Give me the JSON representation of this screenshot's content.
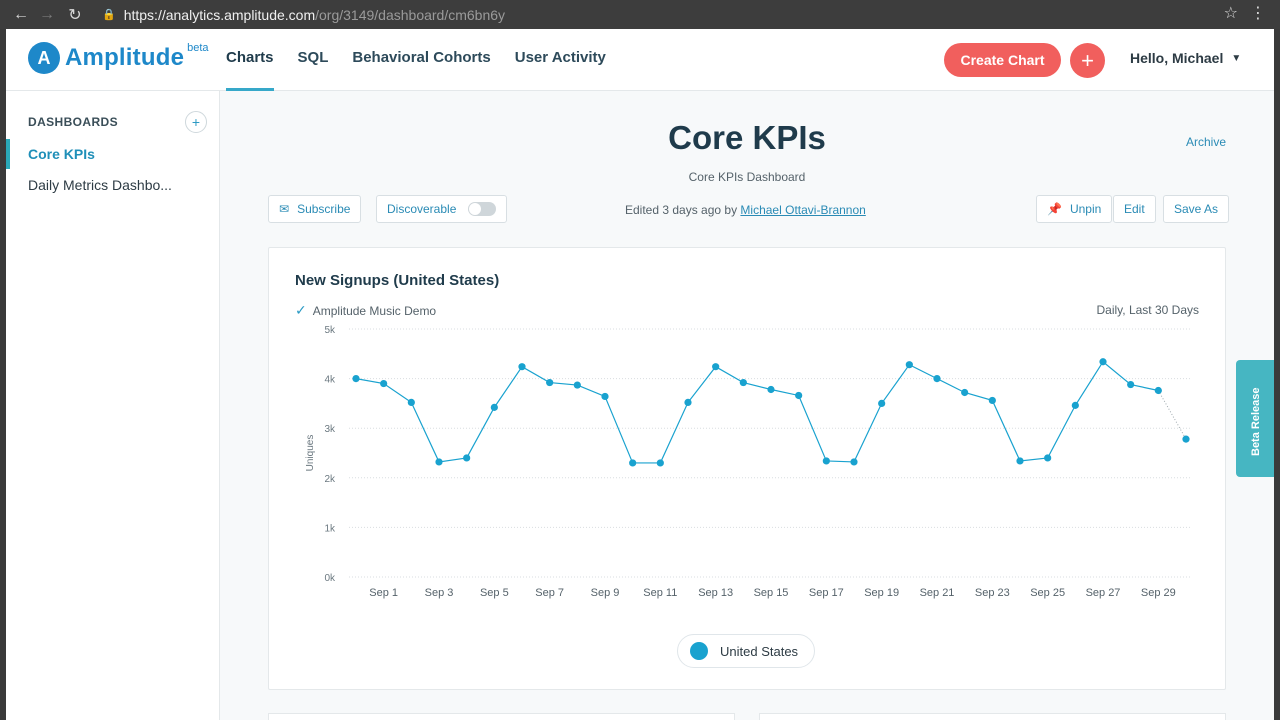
{
  "browser": {
    "url_domain": "https://analytics.amplitude.com",
    "url_path": "/org/3149/dashboard/cm6bn6y",
    "back_icon": "arrow-left",
    "forward_icon": "arrow-right",
    "reload_icon": "reload",
    "lock_icon": "lock",
    "star_icon": "star",
    "menu_icon": "kebab"
  },
  "header": {
    "logo_text": "Amplitude",
    "logo_beta": "beta",
    "nav": [
      "Charts",
      "SQL",
      "Behavioral Cohorts",
      "User Activity"
    ],
    "create_chart": "Create Chart",
    "plus": "+",
    "greeting": "Hello, Michael"
  },
  "sidebar": {
    "heading": "DASHBOARDS",
    "add": "+",
    "items": [
      "Core KPIs",
      "Daily Metrics Dashbo..."
    ]
  },
  "dashboard": {
    "title": "Core KPIs",
    "subtitle": "Core KPIs Dashboard",
    "archive": "Archive",
    "subscribe": "Subscribe",
    "discoverable": "Discoverable",
    "edited_prefix": "Edited 3 days ago by",
    "edited_by": "Michael Ottavi-Brannon",
    "unpin": "Unpin",
    "edit": "Edit",
    "save_as": "Save As"
  },
  "chart_card": {
    "title": "New Signups (United States)",
    "project": "Amplitude Music Demo",
    "range": "Daily, Last 30 Days",
    "legend": "United States"
  },
  "beta_tab": "Beta Release",
  "colors": {
    "accent": "#19a2cf",
    "brand": "#1e88c9",
    "create": "#f15f5d",
    "beta_tab": "#46b6c2"
  },
  "chart_data": {
    "type": "line",
    "title": "New Signups (United States)",
    "ylabel": "Uniques",
    "xlabel": "",
    "ylim": [
      0,
      5000
    ],
    "yticks": [
      0,
      1000,
      2000,
      3000,
      4000,
      5000
    ],
    "ytick_labels": [
      "0k",
      "1k",
      "2k",
      "3k",
      "4k",
      "5k"
    ],
    "x_tick_labels": [
      "Sep 1",
      "Sep 3",
      "Sep 5",
      "Sep 7",
      "Sep 9",
      "Sep 11",
      "Sep 13",
      "Sep 15",
      "Sep 17",
      "Sep 19",
      "Sep 21",
      "Sep 23",
      "Sep 25",
      "Sep 27",
      "Sep 29"
    ],
    "series": [
      {
        "name": "United States",
        "values": [
          4000,
          3900,
          3520,
          2320,
          2400,
          3420,
          4240,
          3920,
          3870,
          3640,
          2300,
          2300,
          3520,
          4240,
          3920,
          3780,
          3660,
          2340,
          2320,
          3500,
          4280,
          4000,
          3720,
          3560,
          2340,
          2400,
          3460,
          4340,
          3880,
          3760,
          2780
        ]
      }
    ],
    "incomplete_last_point": true,
    "grid": true
  }
}
